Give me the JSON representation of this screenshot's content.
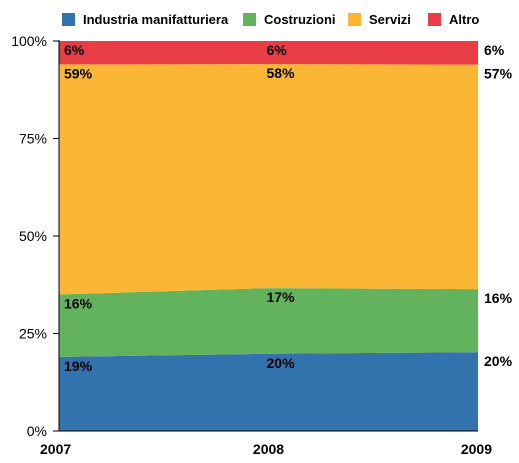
{
  "chart_data": {
    "type": "area",
    "stacked": true,
    "percent": true,
    "categories": [
      "2007",
      "2008",
      "2009"
    ],
    "ylim": [
      0,
      100
    ],
    "yticks": [
      0,
      25,
      50,
      75,
      100
    ],
    "ytick_labels": [
      "0%",
      "25%",
      "50%",
      "75%",
      "100%"
    ],
    "legend_position": "top",
    "grid": false,
    "series": [
      {
        "name": "Industria manifatturiera",
        "color": "#3373ad",
        "values": [
          19,
          20,
          20
        ],
        "labels": [
          "19%",
          "20%",
          "20%"
        ]
      },
      {
        "name": "Costruzioni",
        "color": "#62b35b",
        "values": [
          16,
          17,
          16
        ],
        "labels": [
          "16%",
          "17%",
          "16%"
        ]
      },
      {
        "name": "Servizi",
        "color": "#fbb636",
        "values": [
          59,
          58,
          57
        ],
        "labels": [
          "59%",
          "58%",
          "57%"
        ]
      },
      {
        "name": "Altro",
        "color": "#e83d47",
        "values": [
          6,
          6,
          6
        ],
        "labels": [
          "6%",
          "6%",
          "6%"
        ]
      }
    ]
  }
}
